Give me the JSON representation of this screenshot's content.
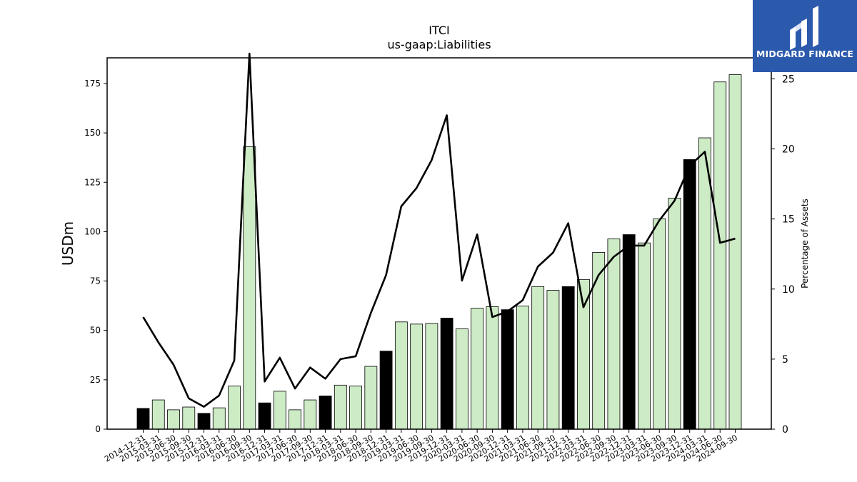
{
  "chart_data": {
    "type": "bar+line",
    "title": "ITCI",
    "subtitle": "us-gaap:Liabilities",
    "ylabel": "USDm",
    "y2label": "Percentage of Assets",
    "ylim": [
      0,
      188
    ],
    "y2lim": [
      0,
      26.5
    ],
    "yticks": [
      0,
      25,
      50,
      75,
      100,
      125,
      150,
      175
    ],
    "y2ticks": [
      0,
      5,
      10,
      15,
      20,
      25
    ],
    "categories": [
      "2014-12-31",
      "2015-03-31",
      "2015-06-30",
      "2015-09-30",
      "2015-12-31",
      "2016-03-31",
      "2016-06-30",
      "2016-09-30",
      "2016-12-31",
      "2017-03-31",
      "2017-06-30",
      "2017-09-30",
      "2017-12-31",
      "2018-03-31",
      "2018-06-30",
      "2018-09-30",
      "2018-12-31",
      "2019-03-31",
      "2019-06-30",
      "2019-09-30",
      "2019-12-31",
      "2020-03-31",
      "2020-06-30",
      "2020-09-30",
      "2020-12-31",
      "2021-03-31",
      "2021-06-30",
      "2021-09-30",
      "2021-12-31",
      "2022-03-31",
      "2022-06-30",
      "2022-09-30",
      "2022-12-31",
      "2023-03-31",
      "2023-06-30",
      "2023-09-30",
      "2023-12-31",
      "2024-03-31",
      "2024-06-30",
      "2024-09-30"
    ],
    "series": [
      {
        "kind": "bar",
        "values": [
          10.5,
          14.8,
          9.8,
          11.2,
          8.0,
          10.8,
          21.8,
          143.0,
          13.3,
          19.2,
          9.8,
          14.8,
          16.8,
          22.3,
          21.8,
          31.8,
          39.5,
          54.3,
          53.2,
          53.5,
          56.2,
          50.8,
          61.3,
          62.0,
          60.5,
          62.3,
          72.2,
          70.3,
          72.2,
          75.8,
          89.5,
          96.3,
          98.5,
          94.3,
          106.5,
          117.0,
          136.5,
          147.5,
          175.8,
          179.5
        ],
        "highlight": [
          true,
          false,
          false,
          false,
          true,
          false,
          false,
          false,
          true,
          false,
          false,
          false,
          true,
          false,
          false,
          false,
          true,
          false,
          false,
          false,
          true,
          false,
          false,
          false,
          true,
          false,
          false,
          false,
          true,
          false,
          false,
          false,
          true,
          false,
          false,
          false,
          true,
          false,
          false,
          false
        ]
      },
      {
        "kind": "line",
        "axis": "right",
        "values": [
          8.0,
          6.2,
          4.6,
          2.2,
          1.6,
          2.4,
          4.9,
          26.8,
          3.4,
          5.1,
          2.9,
          4.4,
          3.6,
          5.0,
          5.2,
          8.3,
          11.0,
          15.9,
          17.2,
          19.2,
          22.4,
          10.6,
          13.9,
          8.0,
          8.4,
          9.2,
          11.6,
          12.6,
          14.7,
          8.7,
          11.0,
          12.3,
          13.1,
          13.1,
          14.9,
          16.3,
          18.8,
          19.8,
          13.3,
          13.6
        ]
      }
    ],
    "colors": {
      "bar_fill": "#cdebc5",
      "bar_highlight": "#000000",
      "bar_edge": "#000000",
      "line": "#000000"
    },
    "grid": false,
    "legend": "none"
  },
  "logo": {
    "text": "MIDGARD FINANCE"
  }
}
